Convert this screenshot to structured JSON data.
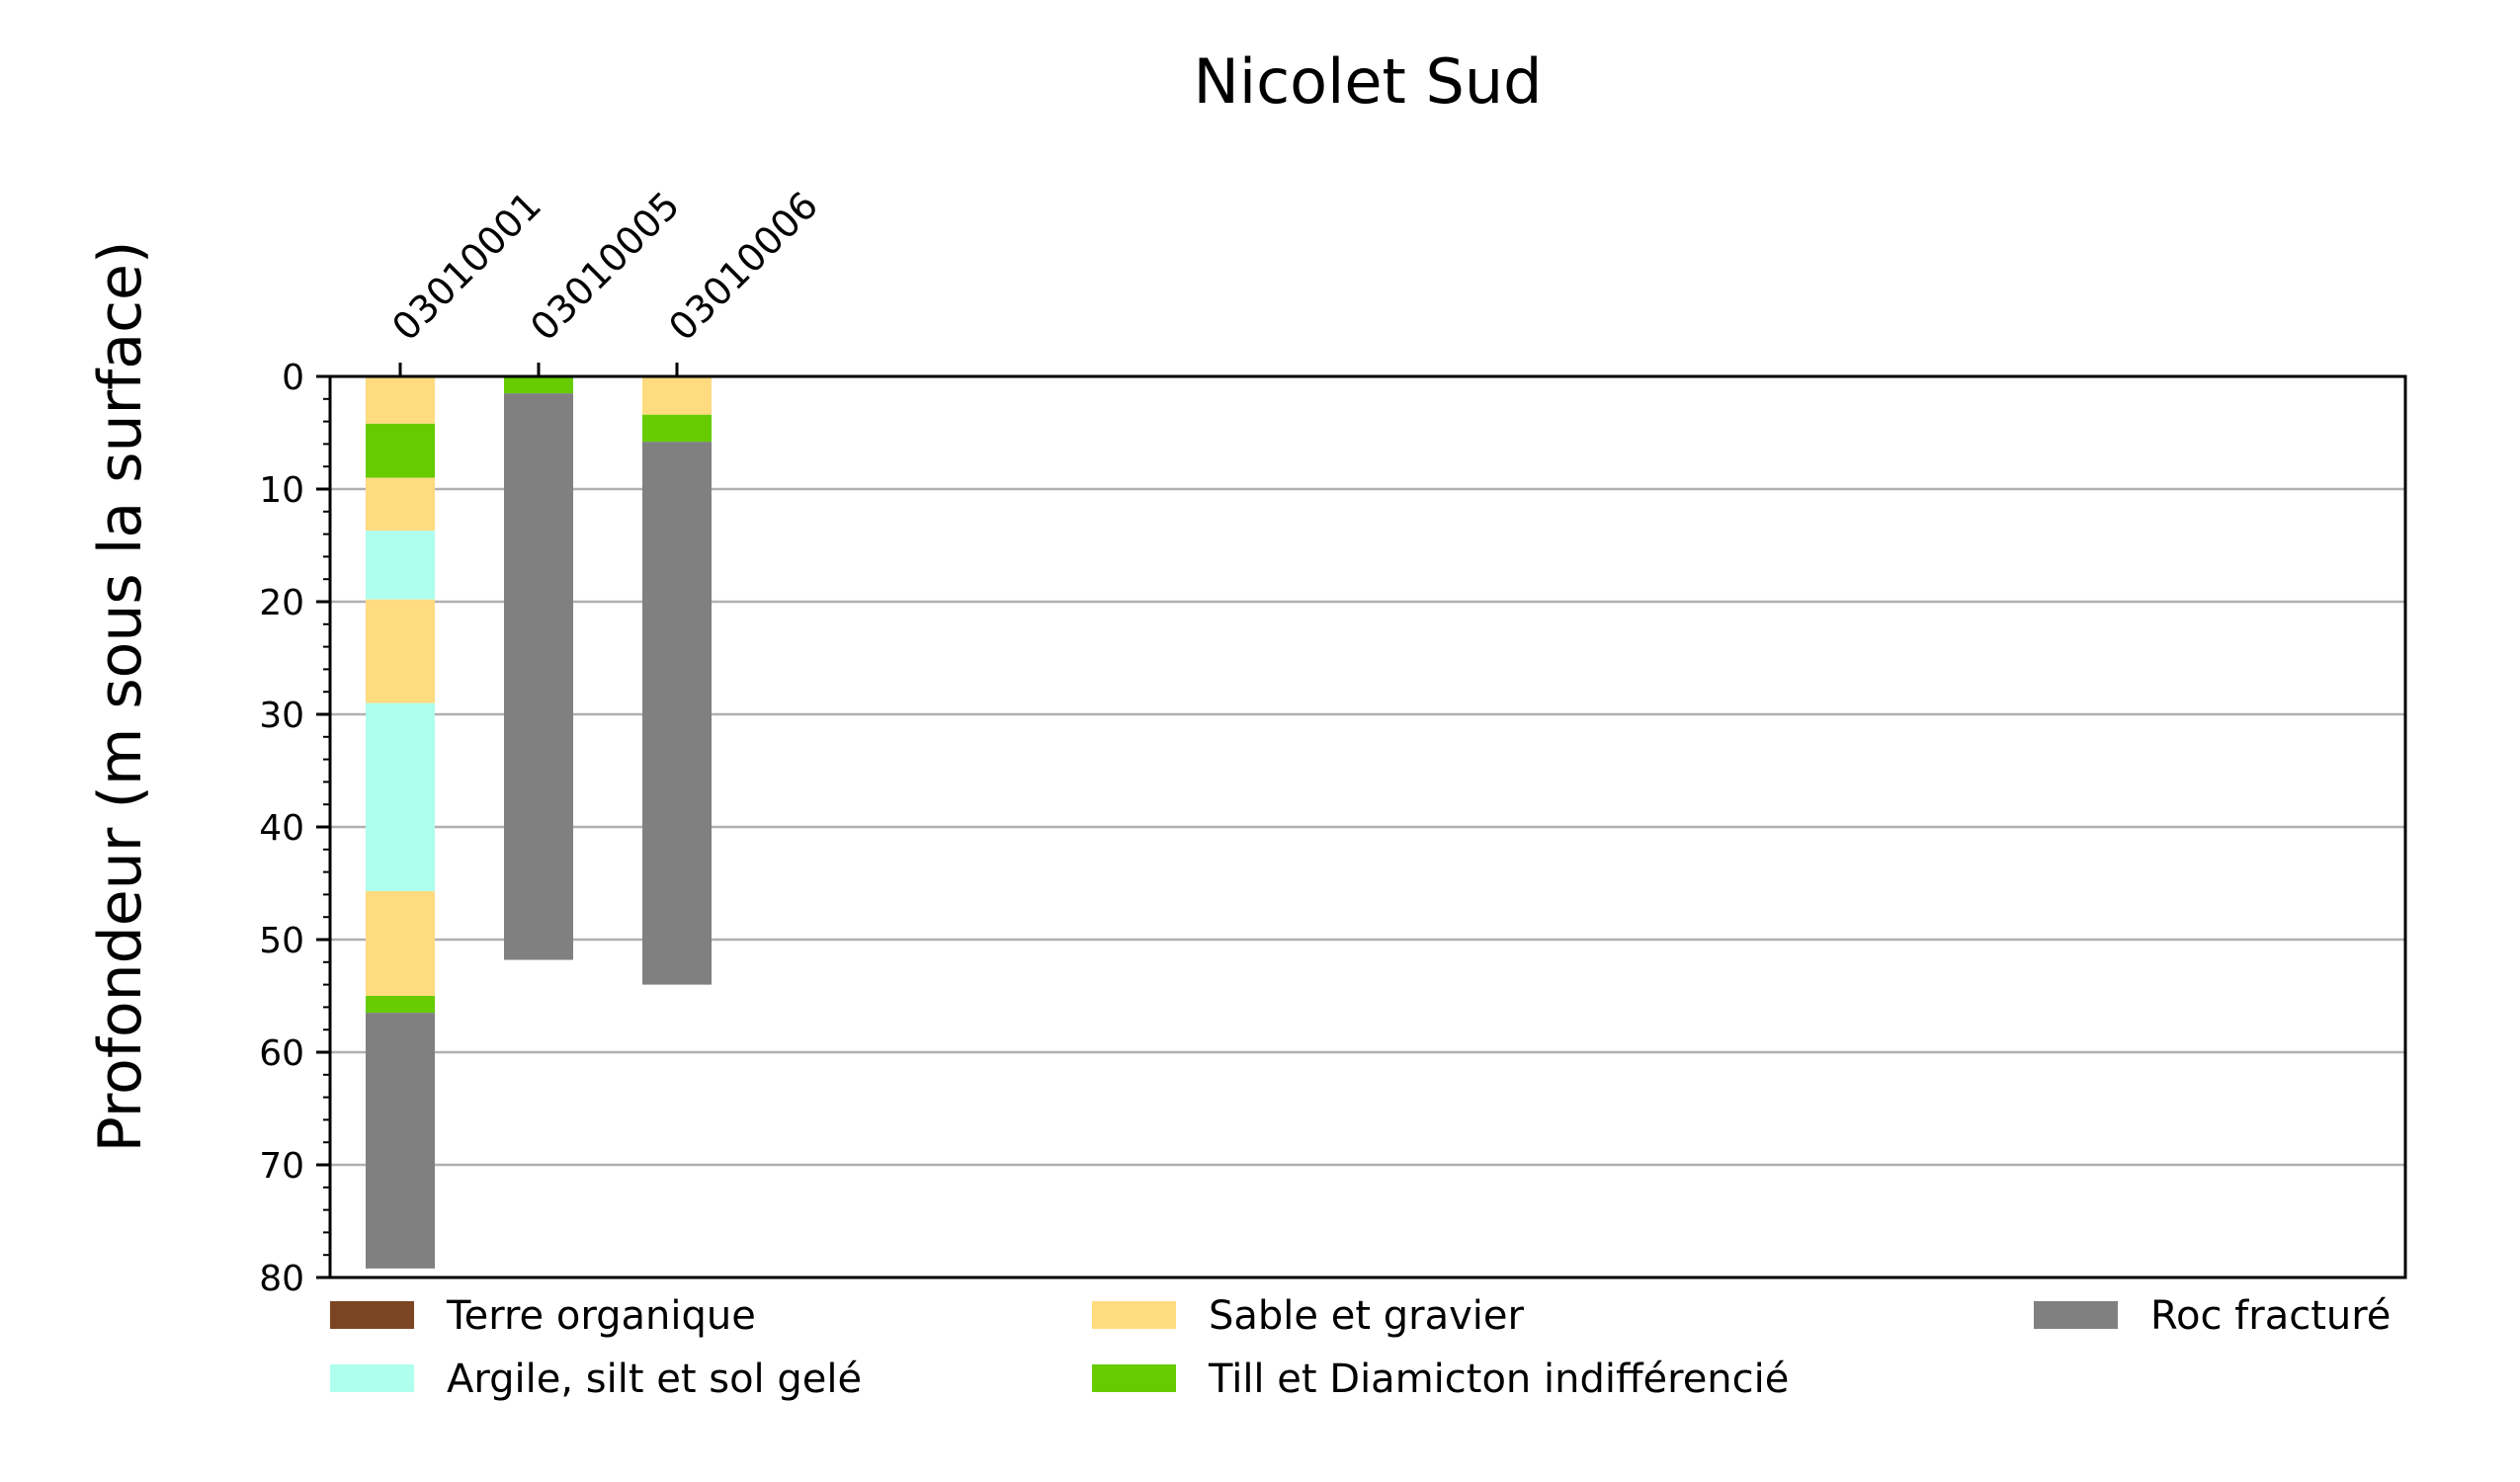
{
  "chart_data": {
    "type": "bar",
    "title": "Nicolet Sud",
    "ylabel": "Profondeur (m sous la surface)",
    "xlabel": "",
    "ylim": [
      80,
      0
    ],
    "y_ticks": [
      0,
      10,
      20,
      30,
      40,
      50,
      60,
      70,
      80
    ],
    "y_tick_labels": [
      "0",
      "10",
      "20",
      "30",
      "40",
      "50",
      "60",
      "70",
      "80"
    ],
    "y_minor_step": 2,
    "grid": "horizontal",
    "legend_position": "bottom",
    "categories": [
      "03010001",
      "03010005",
      "03010006"
    ],
    "materials": [
      {
        "id": "terre",
        "name": "Terre organique",
        "color": "#7B4523"
      },
      {
        "id": "argile",
        "name": "Argile, silt et sol gelé",
        "color": "#AFFFEF"
      },
      {
        "id": "sable",
        "name": "Sable et gravier",
        "color": "#FFDB80"
      },
      {
        "id": "till",
        "name": "Till et Diamicton indifférencié",
        "color": "#66CC00"
      },
      {
        "id": "roc",
        "name": "Roc fracturé",
        "color": "#808080"
      }
    ],
    "legend_order": [
      "terre",
      "sable",
      "roc",
      "argile",
      "till"
    ],
    "wells": [
      {
        "name": "03010001",
        "layers": [
          {
            "material": "sable",
            "top": 0,
            "bottom": 4.2
          },
          {
            "material": "till",
            "top": 4.2,
            "bottom": 9
          },
          {
            "material": "sable",
            "top": 9,
            "bottom": 13.7
          },
          {
            "material": "argile",
            "top": 13.7,
            "bottom": 19.8
          },
          {
            "material": "sable",
            "top": 19.8,
            "bottom": 29
          },
          {
            "material": "argile",
            "top": 29,
            "bottom": 45.7
          },
          {
            "material": "sable",
            "top": 45.7,
            "bottom": 55
          },
          {
            "material": "till",
            "top": 55,
            "bottom": 56.5
          },
          {
            "material": "roc",
            "top": 56.5,
            "bottom": 79.2
          }
        ]
      },
      {
        "name": "03010005",
        "layers": [
          {
            "material": "till",
            "top": 0,
            "bottom": 1.5
          },
          {
            "material": "roc",
            "top": 1.5,
            "bottom": 51.8
          }
        ]
      },
      {
        "name": "03010006",
        "layers": [
          {
            "material": "sable",
            "top": 0,
            "bottom": 3.4
          },
          {
            "material": "till",
            "top": 3.4,
            "bottom": 5.8
          },
          {
            "material": "roc",
            "top": 5.8,
            "bottom": 54
          }
        ]
      }
    ]
  }
}
